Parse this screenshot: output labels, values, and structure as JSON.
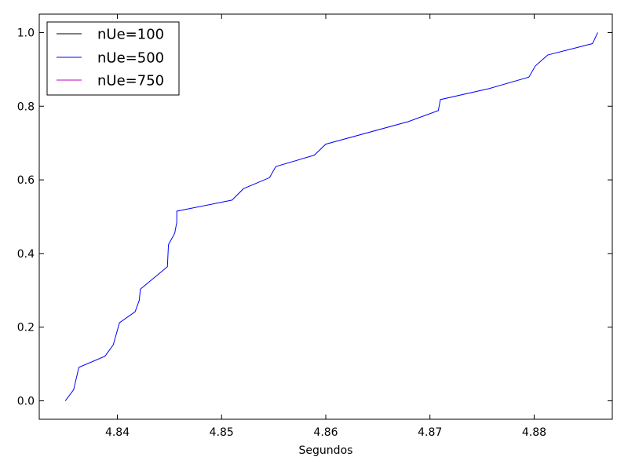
{
  "chart_data": {
    "type": "line",
    "title": "",
    "xlabel": "Segundos",
    "ylabel": "",
    "xlim": [
      4.8325,
      4.8875
    ],
    "ylim": [
      -0.05,
      1.05
    ],
    "xticks": [
      4.84,
      4.85,
      4.86,
      4.87,
      4.88
    ],
    "xtick_labels": [
      "4.84",
      "4.85",
      "4.86",
      "4.87",
      "4.88"
    ],
    "yticks": [
      0.0,
      0.2,
      0.4,
      0.6,
      0.8,
      1.0
    ],
    "ytick_labels": [
      "0.0",
      "0.2",
      "0.4",
      "0.6",
      "0.8",
      "1.0"
    ],
    "grid": false,
    "legend_position": "top-left",
    "series": [
      {
        "name": "nUe=100",
        "color": "#000000",
        "x": [],
        "y": []
      },
      {
        "name": "nUe=500",
        "color": "#0000ff",
        "x": [
          4.835,
          4.8358,
          4.8363,
          4.8388,
          4.8396,
          4.8402,
          4.8417,
          4.8421,
          4.8422,
          4.8448,
          4.8449,
          4.8455,
          4.8457,
          4.8457,
          4.851,
          4.8521,
          4.8546,
          4.8552,
          4.8589,
          4.86,
          4.8679,
          4.8708,
          4.871,
          4.8757,
          4.8795,
          4.8801,
          4.8813,
          4.8856,
          4.8861
        ],
        "y": [
          0.0,
          0.03,
          0.091,
          0.121,
          0.152,
          0.212,
          0.242,
          0.273,
          0.303,
          0.364,
          0.424,
          0.455,
          0.485,
          0.515,
          0.545,
          0.576,
          0.606,
          0.636,
          0.667,
          0.697,
          0.758,
          0.788,
          0.818,
          0.848,
          0.879,
          0.909,
          0.939,
          0.97,
          1.0
        ]
      },
      {
        "name": "nUe=750",
        "color": "#bf00bf",
        "x": [],
        "y": []
      }
    ]
  }
}
